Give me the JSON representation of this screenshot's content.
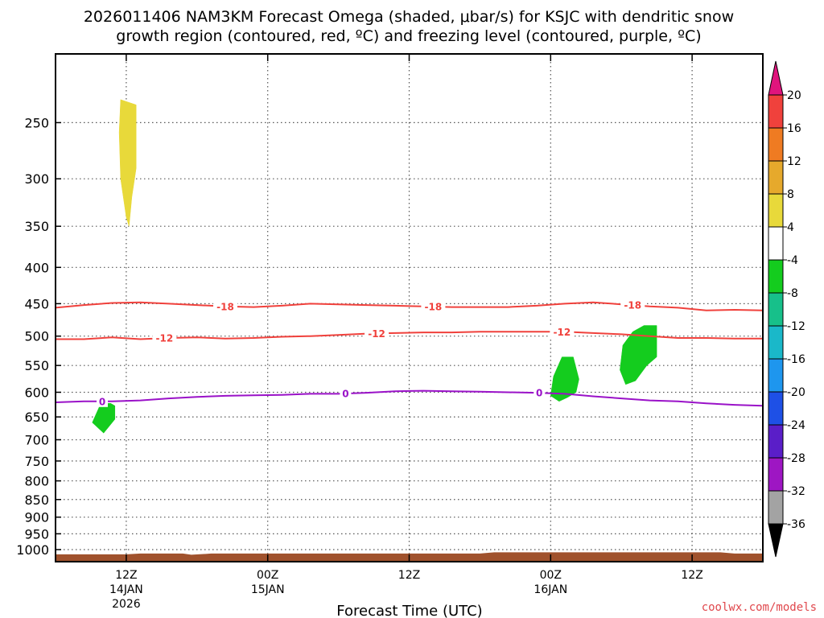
{
  "chart_data": {
    "type": "time-height cross section",
    "title_line1": "2026011406 NAM3KM Forecast Omega (shaded, μbar/s) for KSJC with dendritic snow",
    "title_line2": "growth region (contoured, red, ºC) and freezing level (contoured, purple, ºC)",
    "xlabel": "Forecast Time (UTC)",
    "credit": "coolwx.com/models",
    "x_range_hours": [
      -5,
      45
    ],
    "y_range_hpa": [
      200,
      1040
    ],
    "y_scale": "log-pressure",
    "grid": true,
    "y_ticks": [
      250,
      300,
      350,
      400,
      450,
      500,
      550,
      600,
      650,
      700,
      750,
      800,
      850,
      900,
      950,
      1000
    ],
    "x_ticks": [
      {
        "hour": 0,
        "line1": "12Z",
        "line2": "14JAN",
        "line3": "2026"
      },
      {
        "hour": 10,
        "line1": "00Z",
        "line2": "15JAN",
        "line3": ""
      },
      {
        "hour": 20,
        "line1": "12Z",
        "line2": "",
        "line3": ""
      },
      {
        "hour": 30,
        "line1": "00Z",
        "line2": "16JAN",
        "line3": ""
      },
      {
        "hour": 40,
        "line1": "12Z",
        "line2": "",
        "line3": ""
      }
    ],
    "colorbar": {
      "labels": [
        "20",
        "16",
        "12",
        "8",
        "4",
        "-4",
        "-8",
        "-12",
        "-16",
        "-20",
        "-24",
        "-28",
        "-32",
        "-36"
      ],
      "over_color": "#e0147d",
      "under_color": "#000000",
      "bins": [
        {
          "from": 16,
          "to": 20,
          "color": "#f0413c"
        },
        {
          "from": 12,
          "to": 16,
          "color": "#ef7b22"
        },
        {
          "from": 8,
          "to": 12,
          "color": "#e6a92c"
        },
        {
          "from": 4,
          "to": 8,
          "color": "#e8d93a"
        },
        {
          "from": -4,
          "to": 4,
          "color": "#ffffff"
        },
        {
          "from": -8,
          "to": -4,
          "color": "#14cc1e"
        },
        {
          "from": -12,
          "to": -8,
          "color": "#17c08a"
        },
        {
          "from": -16,
          "to": -12,
          "color": "#1ab8c9"
        },
        {
          "from": -20,
          "to": -16,
          "color": "#1e96ee"
        },
        {
          "from": -24,
          "to": -20,
          "color": "#1e50e6"
        },
        {
          "from": -28,
          "to": -24,
          "color": "#5a1ec8"
        },
        {
          "from": -32,
          "to": -28,
          "color": "#9e16c3"
        },
        {
          "from": -36,
          "to": -32,
          "color": "#a3a3a3"
        }
      ]
    },
    "omega_regions": [
      {
        "value": 4,
        "color": "#e8d93a",
        "points": [
          [
            -0.4,
            232
          ],
          [
            0.7,
            236
          ],
          [
            0.7,
            290
          ],
          [
            0.4,
            318
          ],
          [
            0.2,
            350
          ],
          [
            0.0,
            340
          ],
          [
            -0.4,
            300
          ],
          [
            -0.5,
            258
          ]
        ]
      },
      {
        "value": -4,
        "color": "#14cc1e",
        "points": [
          [
            -1.8,
            622
          ],
          [
            -1.1,
            622
          ],
          [
            -0.8,
            627
          ],
          [
            -0.8,
            655
          ],
          [
            -1.6,
            685
          ],
          [
            -2.4,
            662
          ]
        ]
      },
      {
        "value": -4,
        "color": "#14cc1e",
        "points": [
          [
            30.8,
            535
          ],
          [
            31.6,
            535
          ],
          [
            32.0,
            575
          ],
          [
            31.8,
            600
          ],
          [
            31.2,
            610
          ],
          [
            30.6,
            618
          ],
          [
            30.0,
            607
          ],
          [
            30.2,
            570
          ]
        ]
      },
      {
        "value": -4,
        "color": "#14cc1e",
        "points": [
          [
            36.6,
            483
          ],
          [
            37.5,
            483
          ],
          [
            37.5,
            535
          ],
          [
            36.8,
            550
          ],
          [
            36.0,
            578
          ],
          [
            35.3,
            585
          ],
          [
            34.9,
            558
          ],
          [
            35.1,
            515
          ],
          [
            35.8,
            493
          ]
        ]
      }
    ],
    "contours": [
      {
        "label": "-18",
        "color": "#f0413c",
        "label_x": [
          7,
          21.7,
          35.8
        ],
        "points": [
          [
            -5,
            456
          ],
          [
            -3,
            452
          ],
          [
            -1,
            449
          ],
          [
            1,
            448
          ],
          [
            3,
            450
          ],
          [
            5,
            452
          ],
          [
            7,
            454
          ],
          [
            9,
            455
          ],
          [
            11,
            453
          ],
          [
            13,
            450
          ],
          [
            15,
            451
          ],
          [
            17,
            452
          ],
          [
            19,
            453
          ],
          [
            21,
            454
          ],
          [
            23,
            455
          ],
          [
            25,
            455
          ],
          [
            27,
            455
          ],
          [
            29,
            453
          ],
          [
            31,
            450
          ],
          [
            33,
            448
          ],
          [
            35,
            451
          ],
          [
            37,
            454
          ],
          [
            39,
            456
          ],
          [
            41,
            460
          ],
          [
            43,
            459
          ],
          [
            45,
            460
          ]
        ]
      },
      {
        "label": "-12",
        "color": "#f0413c",
        "label_x": [
          2.7,
          17.7,
          30.8
        ],
        "points": [
          [
            -5,
            505
          ],
          [
            -3,
            505
          ],
          [
            -1,
            502
          ],
          [
            1,
            505
          ],
          [
            3,
            503
          ],
          [
            5,
            502
          ],
          [
            7,
            504
          ],
          [
            9,
            503
          ],
          [
            11,
            501
          ],
          [
            13,
            500
          ],
          [
            15,
            498
          ],
          [
            17,
            496
          ],
          [
            19,
            495
          ],
          [
            21,
            494
          ],
          [
            23,
            494
          ],
          [
            25,
            493
          ],
          [
            27,
            493
          ],
          [
            29,
            493
          ],
          [
            31,
            493
          ],
          [
            33,
            495
          ],
          [
            35,
            497
          ],
          [
            37,
            500
          ],
          [
            39,
            503
          ],
          [
            41,
            503
          ],
          [
            43,
            504
          ],
          [
            45,
            504
          ]
        ]
      },
      {
        "label": "0",
        "color": "#9a12c8",
        "label_x": [
          -1.7,
          15.5,
          29.2
        ],
        "points": [
          [
            -5,
            620
          ],
          [
            -3,
            618
          ],
          [
            -1,
            618
          ],
          [
            1,
            616
          ],
          [
            3,
            612
          ],
          [
            5,
            609
          ],
          [
            7,
            607
          ],
          [
            9,
            606
          ],
          [
            11,
            605
          ],
          [
            13,
            603
          ],
          [
            15,
            603
          ],
          [
            17,
            601
          ],
          [
            19,
            598
          ],
          [
            21,
            597
          ],
          [
            23,
            598
          ],
          [
            25,
            599
          ],
          [
            27,
            600
          ],
          [
            29,
            601
          ],
          [
            31,
            603
          ],
          [
            33,
            608
          ],
          [
            35,
            612
          ],
          [
            37,
            616
          ],
          [
            39,
            618
          ],
          [
            41,
            622
          ],
          [
            43,
            625
          ],
          [
            45,
            627
          ]
        ]
      }
    ],
    "terrain": {
      "color": "#a0522d",
      "top_hpa": 1013
    }
  }
}
